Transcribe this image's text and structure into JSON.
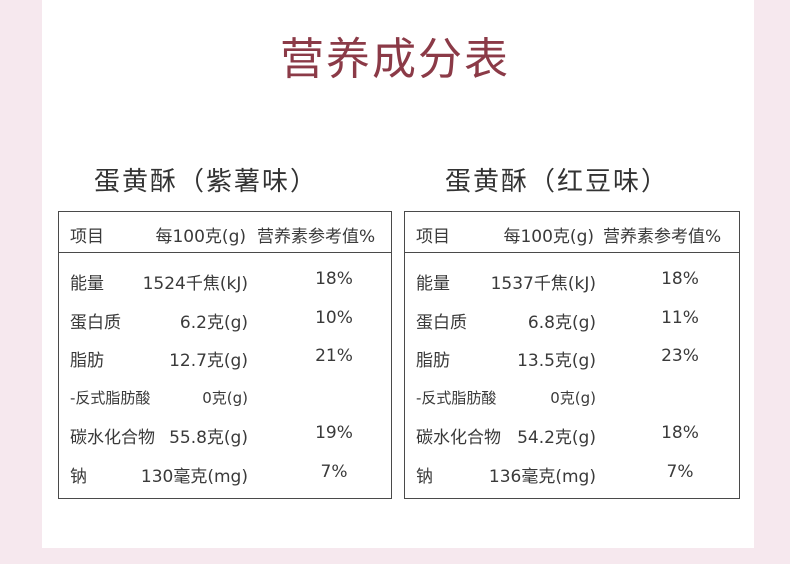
{
  "title": "营养成分表",
  "tables": [
    {
      "subtitle": "蛋黄酥（紫薯味）",
      "headers": [
        "项目",
        "每100克(g)",
        "营养素参考值%"
      ],
      "rows": [
        [
          "能量",
          "1524千焦(kJ)",
          "18%"
        ],
        [
          "蛋白质",
          "6.2克(g)",
          "10%"
        ],
        [
          "脂肪",
          "12.7克(g)",
          "21%"
        ],
        [
          "-反式脂肪酸",
          "0克(g)",
          ""
        ],
        [
          "碳水化合物",
          "55.8克(g)",
          "19%"
        ],
        [
          "钠",
          "130毫克(mg)",
          "7%"
        ]
      ]
    },
    {
      "subtitle": "蛋黄酥（红豆味）",
      "headers": [
        "项目",
        "每100克(g)",
        "营养素参考值%"
      ],
      "rows": [
        [
          "能量",
          "1537千焦(kJ)",
          "18%"
        ],
        [
          "蛋白质",
          "6.8克(g)",
          "11%"
        ],
        [
          "脂肪",
          "13.5克(g)",
          "23%"
        ],
        [
          "-反式脂肪酸",
          "0克(g)",
          ""
        ],
        [
          "碳水化合物",
          "54.2克(g)",
          "18%"
        ],
        [
          "钠",
          "136毫克(mg)",
          "7%"
        ]
      ]
    }
  ]
}
